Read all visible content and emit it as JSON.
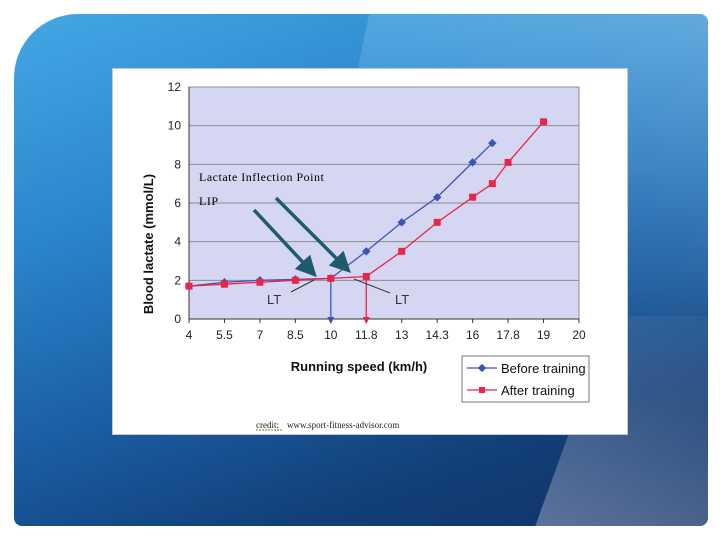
{
  "slide": {
    "background_colors": [
      "#43a8e4",
      "#1a5da2",
      "#0f3366"
    ]
  },
  "annotations": {
    "lip_title": "Lactate  Inflection  Point",
    "lip_abbrev": "LIP",
    "lt_before": "LT",
    "lt_after": "LT",
    "credit_label": "credit:",
    "credit_url": "www.sport-fitness-advisor.com"
  },
  "chart_data": {
    "type": "line",
    "xlabel": "Running speed (km/h)",
    "ylabel": "Blood lactate (mmol/L)",
    "x_ticks": [
      "4",
      "5.5",
      "7",
      "8.5",
      "10",
      "11.8",
      "13",
      "14.3",
      "16",
      "17.8",
      "19",
      "20"
    ],
    "y_ticks": [
      "0",
      "2",
      "4",
      "6",
      "8",
      "10",
      "12"
    ],
    "ylim": [
      0,
      12
    ],
    "plot_background": "#d4d6f2",
    "grid": "horizontal",
    "legend_position": "bottom-right",
    "series": [
      {
        "name": "Before training",
        "color": "#3a55b4",
        "marker": "diamond",
        "points": [
          {
            "x": "4",
            "y": 1.7
          },
          {
            "x": "5.5",
            "y": 1.9
          },
          {
            "x": "7",
            "y": 2.0
          },
          {
            "x": "8.5",
            "y": 2.05
          },
          {
            "x": "10",
            "y": 2.1
          },
          {
            "x": "11.8",
            "y": 3.5
          },
          {
            "x": "13",
            "y": 5.0
          },
          {
            "x": "14.3",
            "y": 6.3
          },
          {
            "x": "16",
            "y": 8.1
          },
          {
            "x": "17",
            "y": 9.1
          }
        ]
      },
      {
        "name": "After training",
        "color": "#e8264a",
        "marker": "square",
        "points": [
          {
            "x": "4",
            "y": 1.7
          },
          {
            "x": "5.5",
            "y": 1.8
          },
          {
            "x": "7",
            "y": 1.9
          },
          {
            "x": "8.5",
            "y": 2.0
          },
          {
            "x": "10",
            "y": 2.1
          },
          {
            "x": "11.8",
            "y": 2.2
          },
          {
            "x": "13",
            "y": 3.5
          },
          {
            "x": "14.3",
            "y": 5.0
          },
          {
            "x": "16",
            "y": 6.3
          },
          {
            "x": "17",
            "y": 7.0
          },
          {
            "x": "17.8",
            "y": 8.1
          },
          {
            "x": "19",
            "y": 10.2
          }
        ]
      }
    ],
    "threshold_markers": [
      {
        "label": "LT",
        "series": "Before training",
        "x": "10",
        "y": 2.1
      },
      {
        "label": "LT",
        "series": "After training",
        "x": "11.8",
        "y": 2.2
      }
    ]
  }
}
